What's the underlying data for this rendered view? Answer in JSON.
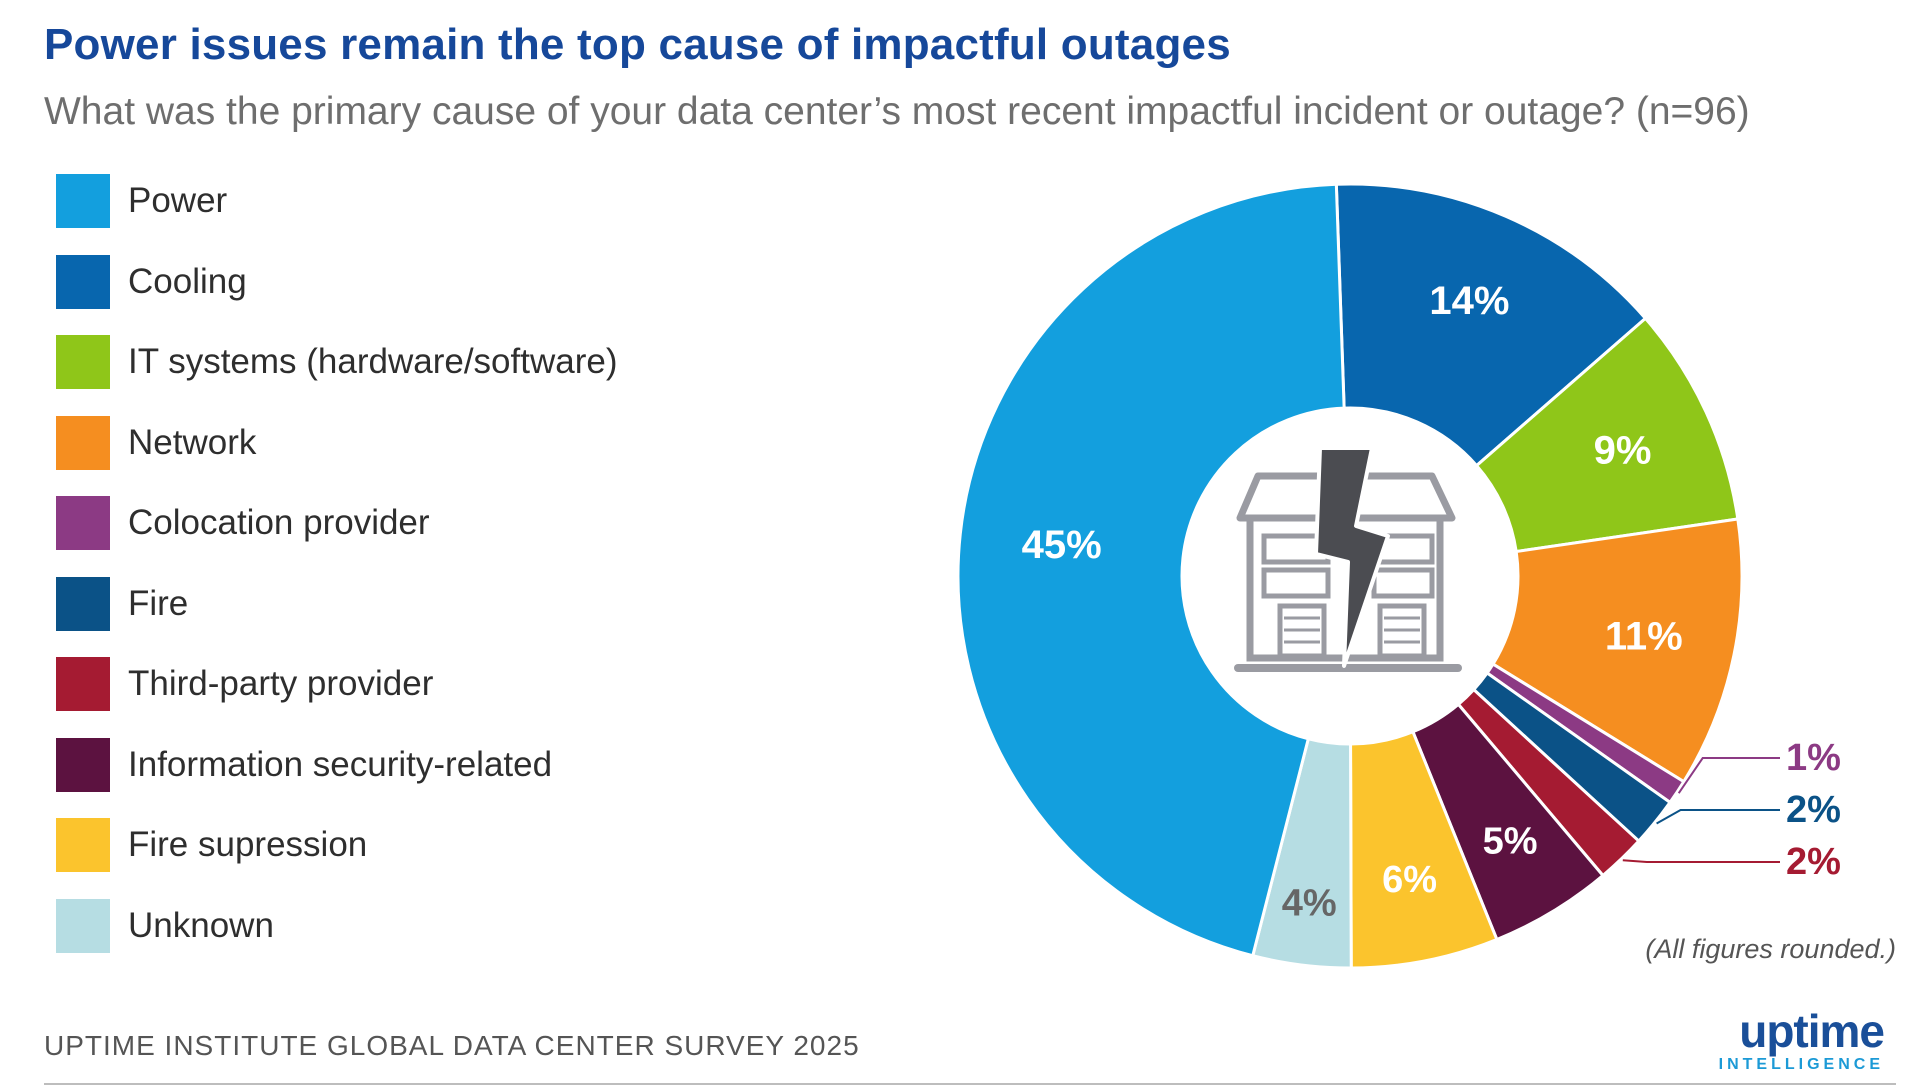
{
  "title": "Power issues remain the top cause of impactful outages",
  "subtitle": "What was the primary cause of your data center’s most recent impactful incident or outage? (n=96)",
  "note": "(All figures rounded.)",
  "source": "UPTIME INSTITUTE GLOBAL DATA CENTER SURVEY 2025",
  "brand": {
    "name": "uptime",
    "sub": "INTELLIGENCE"
  },
  "colors": {
    "Power": "#139fde",
    "Cooling": "#0866ae",
    "IT systems (hardware/software)": "#8fc619",
    "Network": "#f58e20",
    "Colocation provider": "#8c3a84",
    "Fire": "#0b5287",
    "Third-party provider": "#a51b32",
    "Information security-related": "#5c1240",
    "Fire supression": "#fbc42d",
    "Unknown": "#b6dde3"
  },
  "center_icon": "data-center-lightning-icon",
  "chart_data": {
    "type": "pie",
    "style": "donut",
    "categories": [
      "Power",
      "Cooling",
      "IT systems (hardware/software)",
      "Network",
      "Colocation provider",
      "Fire",
      "Third-party provider",
      "Information security-related",
      "Fire supression",
      "Unknown"
    ],
    "values": [
      45,
      14,
      9,
      11,
      1,
      2,
      2,
      5,
      6,
      4
    ],
    "labels": [
      "45%",
      "14%",
      "9%",
      "11%",
      "1%",
      "2%",
      "2%",
      "5%",
      "6%",
      "4%"
    ],
    "legend_position": "left"
  }
}
